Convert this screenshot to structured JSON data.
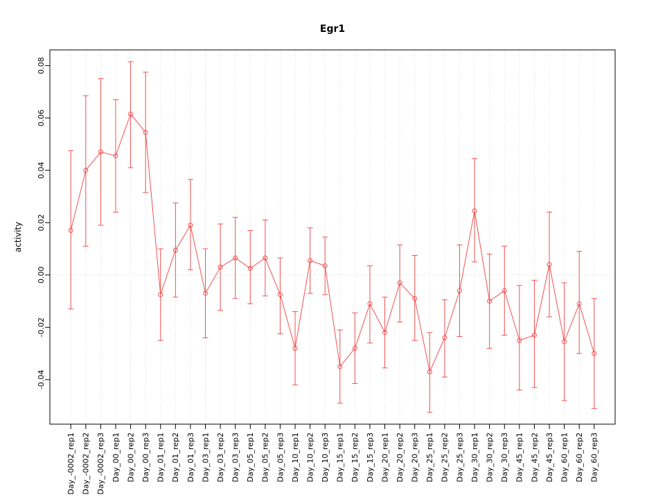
{
  "chart_data": {
    "type": "line",
    "title": "Egr1",
    "xlabel": "",
    "ylabel": "activity",
    "legend_position": "none",
    "marker": "open-circle",
    "line_color": "#f05050",
    "grid_color": "#d4d4d4",
    "axis_color": "#000000",
    "grid": "dotted vertical line at each category plus dotted horizontal line at zero",
    "ylim": [
      -0.057,
      0.086
    ],
    "yticks": [
      -0.04,
      -0.02,
      0.0,
      0.02,
      0.04,
      0.06,
      0.08
    ],
    "categories": [
      "Day_-0002_rep1",
      "Day_-0002_rep2",
      "Day_-0002_rep3",
      "Day_00_rep1",
      "Day_00_rep2",
      "Day_00_rep3",
      "Day_01_rep1",
      "Day_01_rep2",
      "Day_01_rep3",
      "Day_03_rep1",
      "Day_03_rep2",
      "Day_03_rep3",
      "Day_05_rep1",
      "Day_05_rep2",
      "Day_05_rep3",
      "Day_10_rep1",
      "Day_10_rep2",
      "Day_10_rep3",
      "Day_15_rep1",
      "Day_15_rep2",
      "Day_15_rep3",
      "Day_20_rep1",
      "Day_20_rep2",
      "Day_20_rep3",
      "Day_25_rep1",
      "Day_25_rep2",
      "Day_25_rep3",
      "Day_30_rep1",
      "Day_30_rep2",
      "Day_30_rep3",
      "Day_45_rep1",
      "Day_45_rep2",
      "Day_45_rep3",
      "Day_60_rep1",
      "Day_60_rep2",
      "Day_60_rep3"
    ],
    "values": [
      0.017,
      0.04,
      0.047,
      0.0455,
      0.0615,
      0.0545,
      -0.0075,
      0.0095,
      0.019,
      -0.007,
      0.003,
      0.0065,
      0.0025,
      0.0065,
      -0.0075,
      -0.028,
      0.0055,
      0.0035,
      -0.035,
      -0.028,
      -0.011,
      -0.022,
      -0.003,
      -0.009,
      -0.037,
      -0.024,
      -0.006,
      0.0245,
      -0.01,
      -0.006,
      -0.025,
      -0.023,
      0.004,
      -0.0255,
      -0.011,
      -0.03
    ],
    "error_upper": [
      0.0475,
      0.0685,
      0.075,
      0.067,
      0.0815,
      0.0775,
      0.01,
      0.0275,
      0.0365,
      0.01,
      0.0195,
      0.022,
      0.017,
      0.021,
      0.0065,
      -0.014,
      0.018,
      0.0145,
      -0.021,
      -0.0145,
      0.0035,
      -0.0085,
      0.0115,
      0.0075,
      -0.022,
      -0.0095,
      0.0115,
      0.0445,
      0.008,
      0.011,
      -0.004,
      -0.002,
      0.024,
      -0.003,
      0.009,
      -0.009
    ],
    "error_lower": [
      -0.013,
      0.011,
      0.019,
      0.024,
      0.041,
      0.0315,
      -0.025,
      -0.0085,
      0.002,
      -0.024,
      -0.0135,
      -0.009,
      -0.011,
      -0.008,
      -0.0225,
      -0.042,
      -0.007,
      -0.0075,
      -0.049,
      -0.0415,
      -0.026,
      -0.0355,
      -0.018,
      -0.025,
      -0.0525,
      -0.039,
      -0.0235,
      0.005,
      -0.028,
      -0.023,
      -0.044,
      -0.043,
      -0.016,
      -0.048,
      -0.03,
      -0.051
    ]
  }
}
